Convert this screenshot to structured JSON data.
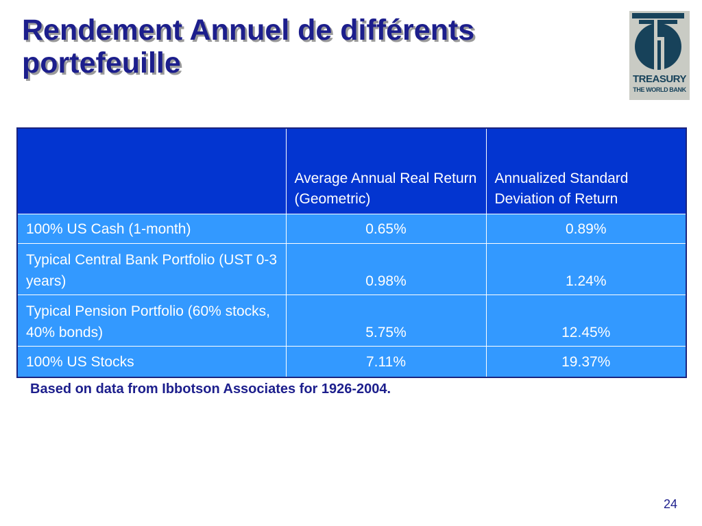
{
  "slide": {
    "title": "Rendement Annuel de différents portefeuille",
    "logo": {
      "line1": "TREASURY",
      "line2": "THE WORLD BANK"
    },
    "table": {
      "headers": [
        "",
        "Average Annual Real Return (Geometric)",
        "Annualized Standard Deviation of Return"
      ],
      "rows": [
        {
          "label": "100% US Cash (1-month)",
          "real_return": "0.65%",
          "std_dev": "0.89%"
        },
        {
          "label": "Typical Central Bank Portfolio (UST 0-3 years)",
          "real_return": "0.98%",
          "std_dev": "1.24%"
        },
        {
          "label": "Typical Pension Portfolio (60% stocks, 40% bonds)",
          "real_return": "5.75%",
          "std_dev": "12.45%"
        },
        {
          "label": "100% US Stocks",
          "real_return": "7.11%",
          "std_dev": "19.37%"
        }
      ]
    },
    "note": "Based on data from Ibbotson Associates for 1926-2004.",
    "page_number": "24"
  },
  "colors": {
    "title": "#1c1e8c",
    "header_fill": "#0335d0",
    "row_fill": "#3399ff",
    "logo_bg": "#c9cbc4",
    "logo_mark": "#17425a"
  }
}
